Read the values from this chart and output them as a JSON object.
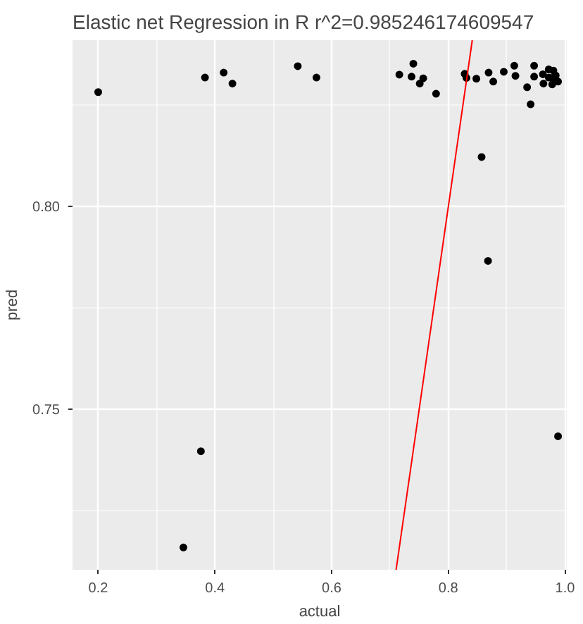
{
  "chart_data": {
    "type": "scatter",
    "title": "Elastic net Regression in R r^2=0.985246174609547",
    "xlabel": "actual",
    "ylabel": "pred",
    "grid": true,
    "xlim": [
      0.156,
      1.003
    ],
    "ylim": [
      0.7105,
      0.841
    ],
    "xticks": [
      0.2,
      0.4,
      0.6,
      0.8,
      {
        "value": 1,
        "label": "1.0"
      }
    ],
    "yticks": [
      0.75,
      {
        "value": 0.8,
        "label": "0.80"
      }
    ],
    "series": [
      {
        "marker": "circle",
        "color": "#000000",
        "x": [
          0.2,
          0.383,
          0.415,
          0.43,
          0.542,
          0.574,
          0.716,
          0.74,
          0.737,
          0.757,
          0.751,
          0.779,
          0.828,
          0.831,
          0.848,
          0.869,
          0.877,
          0.895,
          0.913,
          0.915,
          0.935,
          0.941,
          0.947,
          0.947,
          0.962,
          0.963,
          0.972,
          0.98,
          0.972,
          0.978,
          0.984,
          0.978,
          0.988,
          0.857,
          0.868,
          0.376,
          0.346,
          0.988
        ],
        "values": [
          0.8282,
          0.8318,
          0.833,
          0.8303,
          0.8346,
          0.8318,
          0.8325,
          0.8352,
          0.832,
          0.8316,
          0.8303,
          0.8278,
          0.8327,
          0.8317,
          0.8315,
          0.833,
          0.8308,
          0.8332,
          0.8347,
          0.8322,
          0.8294,
          0.8252,
          0.8347,
          0.832,
          0.8326,
          0.8303,
          0.8338,
          0.8335,
          0.8318,
          0.8317,
          0.8323,
          0.8301,
          0.8308,
          0.8122,
          0.7866,
          0.7397,
          0.716,
          0.7434
        ]
      },
      {
        "type": "line",
        "color": "#ff0000",
        "x": [
          0.7105,
          0.841
        ],
        "values": [
          0.7105,
          0.841
        ]
      }
    ]
  }
}
